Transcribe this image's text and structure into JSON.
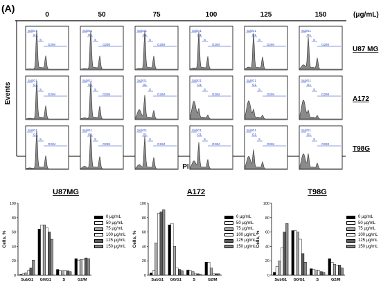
{
  "panel_label": "(A)",
  "unit_label": "(μg/mL)",
  "column_concentrations": [
    "0",
    "50",
    "75",
    "100",
    "125",
    "150"
  ],
  "row_cell_lines": [
    "U87 MG",
    "A172",
    "T98G"
  ],
  "y_axis_label": "Events",
  "x_axis_label": "PI",
  "gate_labels": {
    "subg1": "SubG1",
    "g1": "G1",
    "s": "S",
    "g2m": "G2/M"
  },
  "series_colors": [
    "#000000",
    "#ffffff",
    "#a6a6a6",
    "#ffffff",
    "#595959",
    "#8c8c8c"
  ],
  "chart_data": [
    {
      "type": "bar",
      "title": "U87MG",
      "ylabel": "Cells, %",
      "xlabel": "",
      "ylim": [
        0,
        100
      ],
      "yticks": [
        0,
        20,
        40,
        60,
        80,
        100
      ],
      "categories": [
        "SubG1",
        "G0/G1",
        "S",
        "G2/M"
      ],
      "series": [
        {
          "name": "0 μg/mL",
          "values": [
            1,
            64,
            8,
            23
          ]
        },
        {
          "name": "50 μg/mL",
          "values": [
            2,
            70,
            6,
            21
          ]
        },
        {
          "name": "75 μg/mL",
          "values": [
            3,
            70,
            6,
            22
          ]
        },
        {
          "name": "100 μg/mL",
          "values": [
            6,
            66,
            6,
            22
          ]
        },
        {
          "name": "125 μg/mL",
          "values": [
            10,
            60,
            6,
            24
          ]
        },
        {
          "name": "150 μg/mL",
          "values": [
            21,
            50,
            5,
            23
          ]
        }
      ]
    },
    {
      "type": "bar",
      "title": "A172",
      "ylabel": "Cells, %",
      "xlabel": "",
      "ylim": [
        0,
        100
      ],
      "yticks": [
        0,
        20,
        40,
        60,
        80,
        100
      ],
      "categories": [
        "SubG1",
        "G0/G1",
        "S",
        "G2/M"
      ],
      "series": [
        {
          "name": "0 μg/mL",
          "values": [
            3,
            70,
            7,
            18
          ]
        },
        {
          "name": "50 μg/mL",
          "values": [
            6,
            72,
            6,
            18
          ]
        },
        {
          "name": "75 μg/mL",
          "values": [
            45,
            40,
            5,
            10
          ]
        },
        {
          "name": "100 μg/mL",
          "values": [
            86,
            10,
            2,
            2
          ]
        },
        {
          "name": "125 μg/mL",
          "values": [
            88,
            8,
            2,
            2
          ]
        },
        {
          "name": "150 μg/mL",
          "values": [
            91,
            6,
            1,
            2
          ]
        }
      ]
    },
    {
      "type": "bar",
      "title": "T98G",
      "ylabel": "Cells, %",
      "xlabel": "",
      "ylim": [
        0,
        100
      ],
      "yticks": [
        0,
        20,
        40,
        60,
        80,
        100
      ],
      "categories": [
        "SubG1",
        "G0/G1",
        "S",
        "G2/M"
      ],
      "series": [
        {
          "name": "0 μg/mL",
          "values": [
            4,
            62,
            9,
            23
          ]
        },
        {
          "name": "50 μg/mL",
          "values": [
            12,
            62,
            8,
            18
          ]
        },
        {
          "name": "75 μg/mL",
          "values": [
            20,
            60,
            7,
            15
          ]
        },
        {
          "name": "100 μg/mL",
          "values": [
            38,
            50,
            6,
            14
          ]
        },
        {
          "name": "125 μg/mL",
          "values": [
            60,
            30,
            5,
            14
          ]
        },
        {
          "name": "150 μg/mL",
          "values": [
            72,
            18,
            4,
            10
          ]
        }
      ]
    }
  ]
}
